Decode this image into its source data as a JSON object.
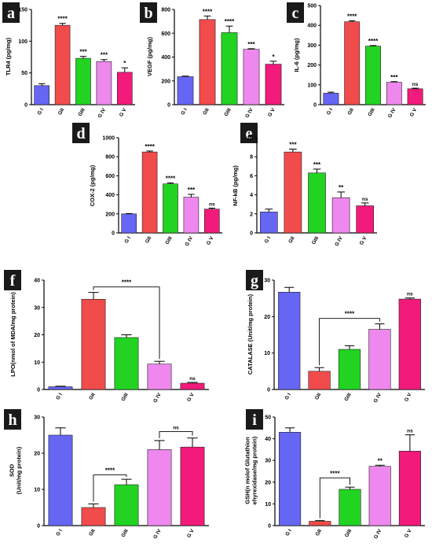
{
  "colors": {
    "G I": "#6566f4",
    "GII": "#f24b4b",
    "GIII": "#22d322",
    "G IV": "#ee88ee",
    "G V": "#f21a7a"
  },
  "chart_data": [
    {
      "panel": "a",
      "type": "bar",
      "ylabel": "TLR4 (pg/mg)",
      "ylim": [
        0,
        150
      ],
      "yticks": [
        0,
        50,
        100,
        150
      ],
      "categories": [
        "G I",
        "GII",
        "GIII",
        "G IV",
        "G V"
      ],
      "values": [
        30,
        125,
        73,
        68,
        51
      ],
      "errors": [
        3,
        3,
        3,
        3,
        7
      ],
      "significance": [
        "",
        "****",
        "***",
        "***",
        "*"
      ]
    },
    {
      "panel": "b",
      "type": "bar",
      "ylabel": "VEGF (pg/mg)",
      "ylim": [
        0,
        800
      ],
      "yticks": [
        0,
        200,
        400,
        600,
        800
      ],
      "categories": [
        "G I",
        "GII",
        "GIII",
        "G IV",
        "G V"
      ],
      "values": [
        235,
        715,
        605,
        465,
        340
      ],
      "errors": [
        5,
        30,
        55,
        5,
        25
      ],
      "significance": [
        "",
        "****",
        "****",
        "***",
        "*"
      ]
    },
    {
      "panel": "c",
      "type": "bar",
      "ylabel": "IL-6 (pg/mg)",
      "ylim": [
        0,
        500
      ],
      "yticks": [
        0,
        100,
        200,
        300,
        400,
        500
      ],
      "categories": [
        "G I",
        "GII",
        "GIII",
        "G IV",
        "G V"
      ],
      "values": [
        58,
        418,
        295,
        113,
        80
      ],
      "errors": [
        5,
        5,
        3,
        3,
        3
      ],
      "significance": [
        "",
        "****",
        "****",
        "***",
        "ns"
      ]
    },
    {
      "panel": "d",
      "type": "bar",
      "ylabel": "COX-2 (pg/mg)",
      "ylim": [
        0,
        1000
      ],
      "yticks": [
        0,
        200,
        400,
        600,
        800,
        1000
      ],
      "categories": [
        "G I",
        "GII",
        "GIII",
        "G IV",
        "G V"
      ],
      "values": [
        200,
        850,
        515,
        375,
        250
      ],
      "errors": [
        3,
        10,
        10,
        30,
        10
      ],
      "significance": [
        "",
        "****",
        "****",
        "***",
        "ns"
      ]
    },
    {
      "panel": "e",
      "type": "bar",
      "ylabel": "NF-kB (pg/mg)",
      "ylim": [
        0,
        10
      ],
      "yticks": [
        0,
        2,
        4,
        6,
        8,
        10
      ],
      "categories": [
        "G I",
        "GII",
        "GIII",
        "G IV",
        "G V"
      ],
      "values": [
        2.2,
        8.5,
        6.3,
        3.7,
        2.85
      ],
      "errors": [
        0.3,
        0.3,
        0.4,
        0.6,
        0.3
      ],
      "significance": [
        "",
        "***",
        "***",
        "**",
        "ns"
      ]
    },
    {
      "panel": "f",
      "type": "bar",
      "ylabel": "LPO(nmol of MDA/mg protein)",
      "ylim": [
        0,
        40
      ],
      "yticks": [
        0,
        10,
        20,
        30,
        40
      ],
      "categories": [
        "G I",
        "GII",
        "GIII",
        "G IV",
        "G V"
      ],
      "values": [
        1.0,
        33,
        19,
        9.3,
        2.3
      ],
      "errors": [
        0.2,
        2.5,
        1.0,
        1.0,
        0.3
      ],
      "significance": [
        "",
        "",
        "",
        "",
        "ns"
      ],
      "bracket": {
        "from": 1,
        "to": 3,
        "label": "****",
        "y": 37.5
      }
    },
    {
      "panel": "g",
      "type": "bar",
      "ylabel": "CATALASE (Unit/mg protein)",
      "ylim": [
        0,
        30
      ],
      "yticks": [
        0,
        10,
        20,
        30
      ],
      "categories": [
        "G I",
        "GII",
        "GIII",
        "G IV",
        "G V"
      ],
      "values": [
        26.7,
        5.0,
        11.0,
        16.5,
        24.8
      ],
      "errors": [
        1.3,
        1.0,
        1.0,
        1.5,
        0.3
      ],
      "significance": [
        "",
        "",
        "",
        "",
        "ns"
      ],
      "bracket": {
        "from": 1,
        "to": 3,
        "label": "****",
        "y": 19.5
      }
    },
    {
      "panel": "h",
      "type": "bar",
      "ylabel": "SOD\n(Unit/mg protein)",
      "ylim": [
        0,
        30
      ],
      "yticks": [
        0,
        10,
        20,
        30
      ],
      "categories": [
        "G I",
        "GII",
        "GIII",
        "G IV",
        "G V"
      ],
      "values": [
        25,
        5.0,
        11.3,
        21,
        21.7
      ],
      "errors": [
        2.0,
        1.0,
        1.5,
        2.5,
        2.5
      ],
      "significance": [
        "",
        "",
        "",
        "",
        ""
      ],
      "brackets": [
        {
          "from": 1,
          "to": 2,
          "label": "****",
          "y": 14
        },
        {
          "from": 3,
          "to": 4,
          "label": "ns",
          "y": 26
        }
      ]
    },
    {
      "panel": "i",
      "type": "bar",
      "ylabel": "GSH(n molof Glutathion\nehyrexidase/mg protein)",
      "ylim": [
        0,
        50
      ],
      "yticks": [
        0,
        10,
        20,
        30,
        40,
        50
      ],
      "categories": [
        "G I",
        "GII",
        "GIII",
        "G IV",
        "G V"
      ],
      "values": [
        43,
        2.0,
        16.7,
        27.3,
        34.3
      ],
      "errors": [
        2.0,
        0.3,
        1.0,
        0.5,
        7.5
      ],
      "significance": [
        "",
        "",
        "",
        "**",
        "ns"
      ],
      "bracket": {
        "from": 1,
        "to": 2,
        "label": "****",
        "y": 22
      }
    }
  ]
}
